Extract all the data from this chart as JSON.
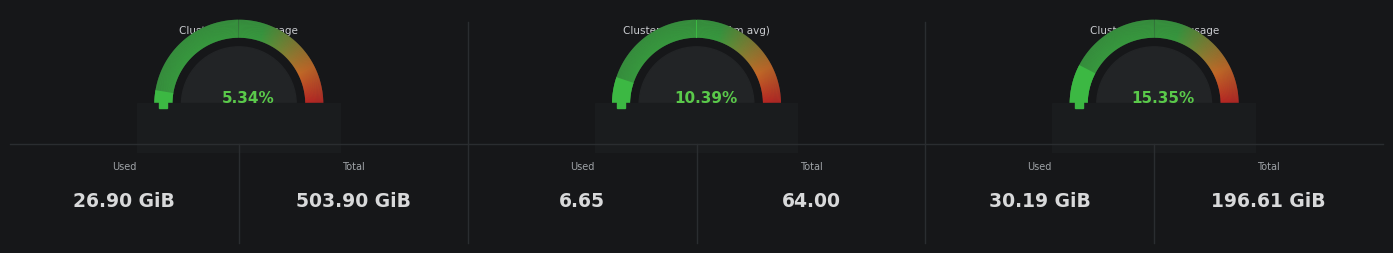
{
  "background_color": "#161719",
  "panel_bg": "#1a1c1e",
  "bottom_bg": "#111214",
  "divider_color": "#2a2d30",
  "panels": [
    {
      "title": "Cluster memory usage",
      "pct": 5.34,
      "pct_label": "5.34%",
      "used_label": "26.90 GiB",
      "total_label": "503.90 GiB"
    },
    {
      "title": "Cluster CPU usage (1m avg)",
      "pct": 10.39,
      "pct_label": "10.39%",
      "used_label": "6.65",
      "total_label": "64.00"
    },
    {
      "title": "Cluster filesystem usage",
      "pct": 15.35,
      "pct_label": "15.35%",
      "used_label": "30.19 GiB",
      "total_label": "196.61 GiB"
    }
  ],
  "gauge_track_color": "#2a2d30",
  "gauge_inner_bg": "#222426",
  "green_color": "#3cb843",
  "orange_color": "#f07b26",
  "red_color": "#e02020",
  "pct_text_color": "#5ac94a",
  "label_color": "#9fa3a7",
  "value_color": "#d8d9da",
  "title_color": "#c8cace",
  "used_label": "Used",
  "total_label": "Total"
}
